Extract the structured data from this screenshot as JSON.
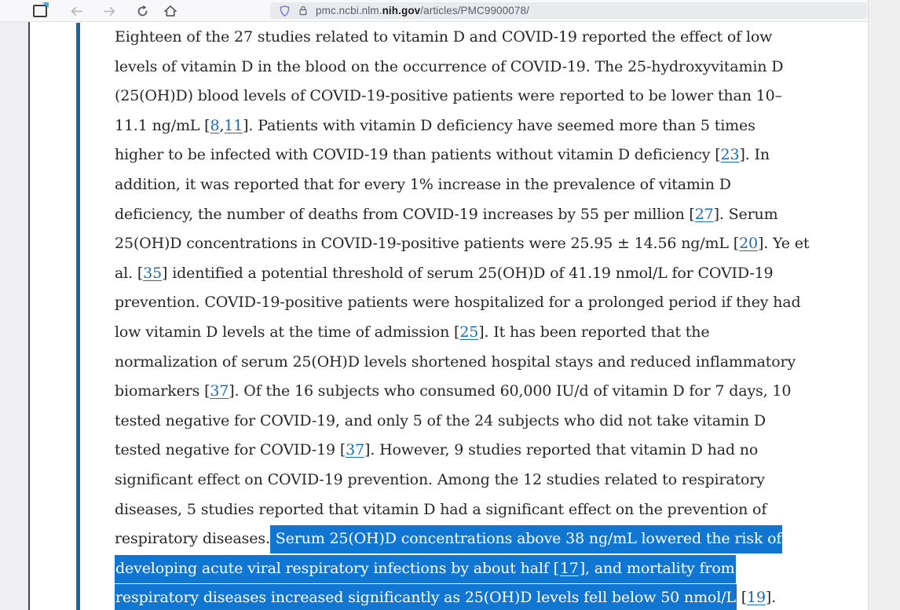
{
  "browser": {
    "toolbar_icons": [
      "window-icon",
      "back-icon",
      "forward-icon",
      "refresh-icon",
      "home-icon",
      "shield-icon",
      "lock-icon"
    ],
    "url": {
      "prefix": "pmc.ncbi.nlm.",
      "domain": "nih.gov",
      "path": "/articles/PMC9900078/"
    }
  },
  "colors": {
    "selection_highlight": "#1176d2",
    "link_blue": "#1b6cb0",
    "accent_bar_blue": "#1a66a0"
  },
  "article": {
    "lines": [
      {
        "segments": [
          {
            "type": "text",
            "text": "Eighteen of the 27 studies related to vitamin D and COVID-19 reported the effect of low"
          }
        ]
      },
      {
        "segments": [
          {
            "type": "text",
            "text": "levels of vitamin D in the blood on the occurrence of COVID-19. The 25-hydroxyvitamin D"
          }
        ]
      },
      {
        "segments": [
          {
            "type": "text",
            "text": "(25(OH)D) blood levels of COVID-19-positive patients were reported to be lower than 10–"
          }
        ]
      },
      {
        "segments": [
          {
            "type": "text",
            "text": "11.1 ng/mL ["
          },
          {
            "type": "link",
            "text": "8"
          },
          {
            "type": "text",
            "text": ","
          },
          {
            "type": "link",
            "text": "11"
          },
          {
            "type": "text",
            "text": "]. Patients with vitamin D deficiency have seemed more than 5 times"
          }
        ]
      },
      {
        "segments": [
          {
            "type": "text",
            "text": "higher to be infected with COVID-19 than patients without vitamin D deficiency ["
          },
          {
            "type": "link",
            "text": "23"
          },
          {
            "type": "text",
            "text": "]. In"
          }
        ]
      },
      {
        "segments": [
          {
            "type": "text",
            "text": "addition, it was reported that for every 1% increase in the prevalence of vitamin D"
          }
        ]
      },
      {
        "segments": [
          {
            "type": "text",
            "text": "deficiency, the number of deaths from COVID-19 increases by 55 per million ["
          },
          {
            "type": "link",
            "text": "27"
          },
          {
            "type": "text",
            "text": "]. Serum"
          }
        ]
      },
      {
        "segments": [
          {
            "type": "text",
            "text": "25(OH)D concentrations in COVID-19-positive patients were 25.95 ± 14.56 ng/mL ["
          },
          {
            "type": "link",
            "text": "20"
          },
          {
            "type": "text",
            "text": "]. Ye et"
          }
        ]
      },
      {
        "segments": [
          {
            "type": "text",
            "text": "al. ["
          },
          {
            "type": "link",
            "text": "35"
          },
          {
            "type": "text",
            "text": "] identified a potential threshold of serum 25(OH)D of 41.19 nmol/L for COVID-19"
          }
        ]
      },
      {
        "segments": [
          {
            "type": "text",
            "text": "prevention. COVID-19-positive patients were hospitalized for a prolonged period if they had"
          }
        ]
      },
      {
        "segments": [
          {
            "type": "text",
            "text": "low vitamin D levels at the time of admission ["
          },
          {
            "type": "link",
            "text": "25"
          },
          {
            "type": "text",
            "text": "]. It has been reported that the"
          }
        ]
      },
      {
        "segments": [
          {
            "type": "text",
            "text": "normalization of serum 25(OH)D levels shortened hospital stays and reduced inflammatory"
          }
        ]
      },
      {
        "segments": [
          {
            "type": "text",
            "text": "biomarkers ["
          },
          {
            "type": "link",
            "text": "37"
          },
          {
            "type": "text",
            "text": "]. Of the 16 subjects who consumed 60,000 IU/d of vitamin D for 7 days, 10"
          }
        ]
      },
      {
        "segments": [
          {
            "type": "text",
            "text": "tested negative for COVID-19, and only 5 of the 24 subjects who did not take vitamin D"
          }
        ]
      },
      {
        "segments": [
          {
            "type": "text",
            "text": "tested negative for COVID-19 ["
          },
          {
            "type": "link",
            "text": "37"
          },
          {
            "type": "text",
            "text": "]. However, 9 studies reported that vitamin D had no"
          }
        ]
      },
      {
        "segments": [
          {
            "type": "text",
            "text": "significant effect on COVID-19 prevention. Among the 12 studies related to respiratory"
          }
        ]
      },
      {
        "segments": [
          {
            "type": "text",
            "text": "diseases, 5 studies reported that vitamin D had a significant effect on the prevention of"
          }
        ]
      },
      {
        "segments": [
          {
            "type": "text",
            "text": "respiratory diseases."
          },
          {
            "type": "hl",
            "text": " Serum 25(OH)D concentrations above 38 ng/mL lowered the risk of"
          }
        ]
      },
      {
        "segments": [
          {
            "type": "hl",
            "text": "developing acute viral respiratory infections by about half ["
          },
          {
            "type": "hl-link",
            "text": "17"
          },
          {
            "type": "hl",
            "text": "], and mortality from"
          }
        ]
      },
      {
        "segments": [
          {
            "type": "hl",
            "text": "respiratory diseases increased significantly as 25(OH)D levels fell below 50 nmol/L"
          },
          {
            "type": "text",
            "text": " ["
          },
          {
            "type": "link",
            "text": "19"
          },
          {
            "type": "text",
            "text": "]."
          }
        ]
      }
    ]
  }
}
